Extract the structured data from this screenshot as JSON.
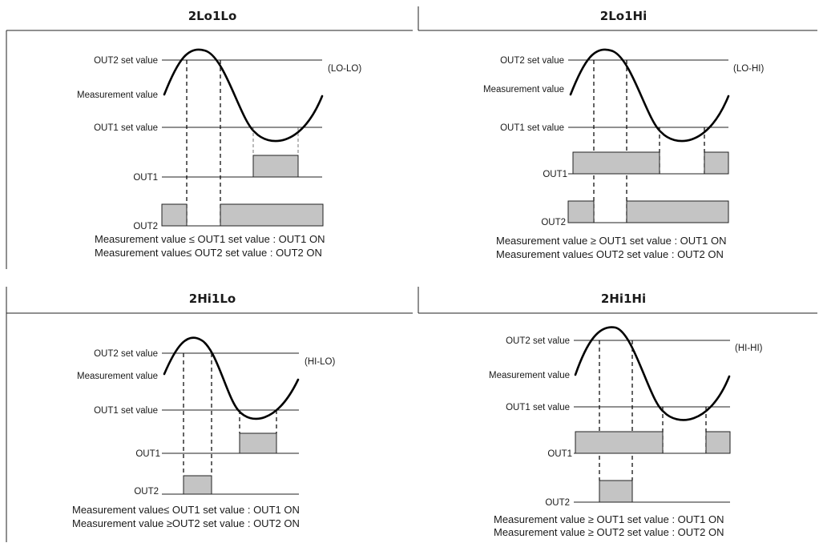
{
  "panels": [
    {
      "title": "2Lo1Lo",
      "mode_label": "(LO-LO)",
      "labels": {
        "out2_set": "OUT2 set value",
        "measurement": "Measurement value",
        "out1_set": "OUT1 set value",
        "out1": "OUT1",
        "out2": "OUT2"
      },
      "conditions": [
        "Measurement value ≤ OUT1 set value : OUT1 ON",
        "Measurement value≤ OUT2 set value : OUT2 ON"
      ]
    },
    {
      "title": "2Lo1Hi",
      "mode_label": "(LO-HI)",
      "labels": {
        "out2_set": "OUT2 set value",
        "measurement": "Measurement value",
        "out1_set": "OUT1 set value",
        "out1": "OUT1",
        "out2": "OUT2"
      },
      "conditions": [
        "Measurement value ≥ OUT1 set value : OUT1 ON",
        "Measurement value≤ OUT2 set value : OUT2 ON"
      ]
    },
    {
      "title": "2Hi1Lo",
      "mode_label": "(HI-LO)",
      "labels": {
        "out2_set": "OUT2 set value",
        "measurement": "Measurement value",
        "out1_set": "OUT1 set value",
        "out1": "OUT1",
        "out2": "OUT2"
      },
      "conditions": [
        "Measurement value≤ OUT1 set value : OUT1 ON",
        "Measurement value ≥OUT2 set value : OUT2 ON"
      ]
    },
    {
      "title": "2Hi1Hi",
      "mode_label": "(HI-HI)",
      "labels": {
        "out2_set": "OUT2 set value",
        "measurement": "Measurement value",
        "out1_set": "OUT1 set value",
        "out1": "OUT1",
        "out2": "OUT2"
      },
      "conditions": [
        "Measurement value ≥ OUT1 set value : OUT1 ON",
        "Measurement value ≥ OUT2 set value : OUT2 ON"
      ]
    }
  ],
  "colors": {
    "output_on_fill": "#c4c4c4",
    "line": "#222222",
    "curve": "#000000"
  }
}
